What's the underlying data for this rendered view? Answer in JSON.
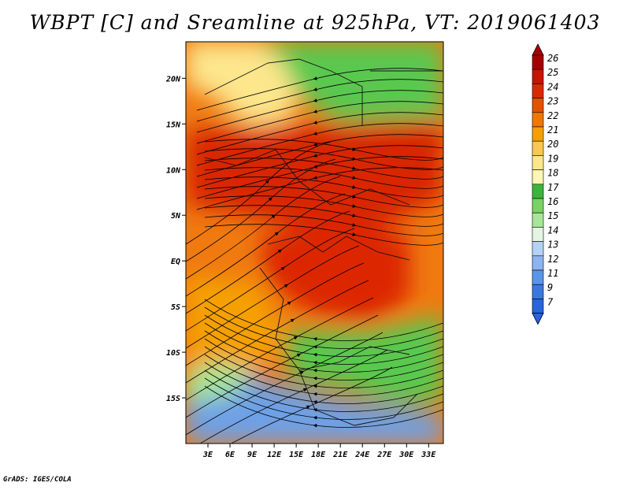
{
  "title": "WBPT [C] and Sreamline at 925hPa, VT: 2019061403",
  "footer": "GrADS: IGES/COLA",
  "map": {
    "lon_range": [
      0,
      35
    ],
    "lat_range": [
      -20,
      24
    ],
    "lat_ticks": [
      {
        "value": 20,
        "label": "20N"
      },
      {
        "value": 15,
        "label": "15N"
      },
      {
        "value": 10,
        "label": "10N"
      },
      {
        "value": 5,
        "label": "5N"
      },
      {
        "value": 0,
        "label": "EQ"
      },
      {
        "value": -5,
        "label": "5S"
      },
      {
        "value": -10,
        "label": "10S"
      },
      {
        "value": -15,
        "label": "15S"
      }
    ],
    "lon_ticks": [
      {
        "value": 3,
        "label": "3E"
      },
      {
        "value": 6,
        "label": "6E"
      },
      {
        "value": 9,
        "label": "9E"
      },
      {
        "value": 12,
        "label": "12E"
      },
      {
        "value": 15,
        "label": "15E"
      },
      {
        "value": 18,
        "label": "18E"
      },
      {
        "value": 21,
        "label": "21E"
      },
      {
        "value": 24,
        "label": "24E"
      },
      {
        "value": 27,
        "label": "27E"
      },
      {
        "value": 30,
        "label": "30E"
      },
      {
        "value": 33,
        "label": "33E"
      }
    ]
  },
  "colorbar": {
    "levels": [
      "26",
      "25",
      "24",
      "23",
      "22",
      "21",
      "20",
      "19",
      "18",
      "17",
      "16",
      "15",
      "14",
      "13",
      "12",
      "11",
      "9",
      "7"
    ],
    "colors": [
      "#a50000",
      "#c81400",
      "#dc2800",
      "#e65000",
      "#ef7800",
      "#f5a000",
      "#f9c850",
      "#fde68c",
      "#fff5b4",
      "#3cb43c",
      "#78d264",
      "#a6e696",
      "#e4f5e4",
      "#b4d2f5",
      "#8cb4f0",
      "#5a96e6",
      "#3c78dc",
      "#2864dc"
    ]
  },
  "colors": {
    "hot": "#d82800",
    "warm": "#f07a10",
    "yellow": "#fde68c",
    "green": "#5ac850",
    "blue": "#6ea0e6"
  }
}
